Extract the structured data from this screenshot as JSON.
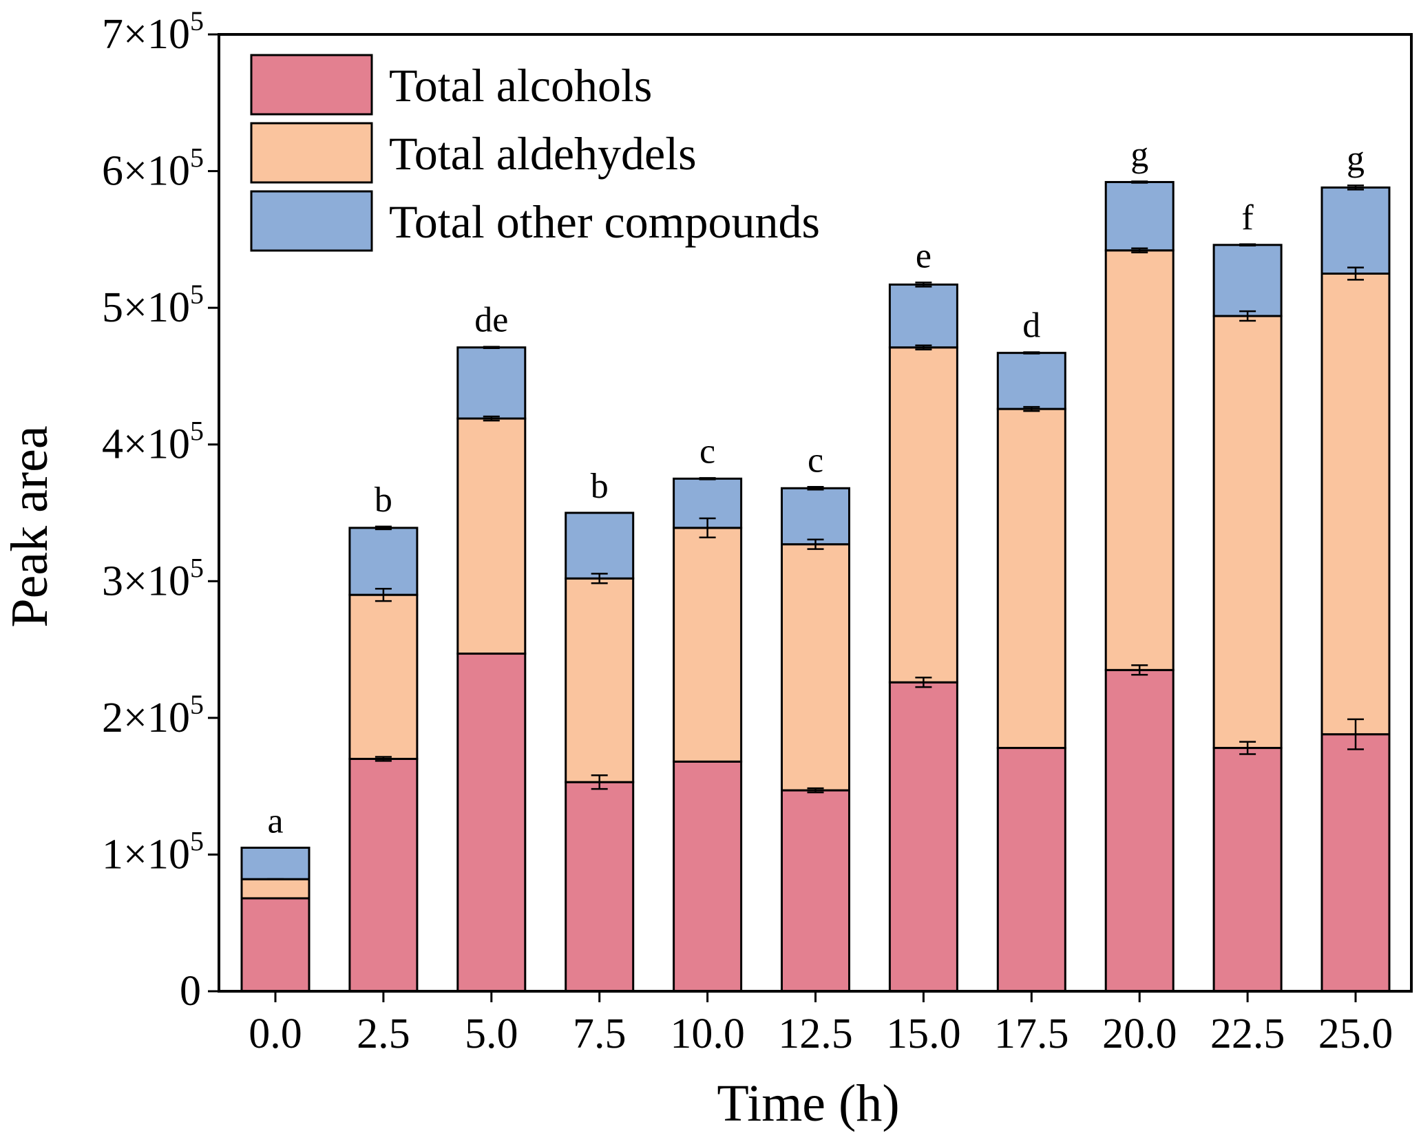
{
  "chart_data": {
    "type": "bar",
    "stacked": true,
    "title": "",
    "xlabel": "Time (h)",
    "ylabel": "Peak area",
    "ylim": [
      0,
      700000
    ],
    "yticks": [
      {
        "value": 0,
        "label": "0"
      },
      {
        "value": 100000,
        "label": "1×10",
        "exp": "5"
      },
      {
        "value": 200000,
        "label": "2×10",
        "exp": "5"
      },
      {
        "value": 300000,
        "label": "3×10",
        "exp": "5"
      },
      {
        "value": 400000,
        "label": "4×10",
        "exp": "5"
      },
      {
        "value": 500000,
        "label": "5×10",
        "exp": "5"
      },
      {
        "value": 600000,
        "label": "6×10",
        "exp": "5"
      },
      {
        "value": 700000,
        "label": "7×10",
        "exp": "5"
      }
    ],
    "categories": [
      "0.0",
      "2.5",
      "5.0",
      "7.5",
      "10.0",
      "12.5",
      "15.0",
      "17.5",
      "20.0",
      "22.5",
      "25.0"
    ],
    "series": [
      {
        "name": "Total alcohols",
        "color": "#E38090",
        "values": [
          68000,
          170000,
          247000,
          153000,
          168000,
          147000,
          226000,
          178000,
          235000,
          178000,
          188000
        ],
        "errors": [
          0,
          1500,
          0,
          5000,
          0,
          1500,
          3500,
          0,
          3500,
          4500,
          11000
        ]
      },
      {
        "name": "Total aldehydels",
        "color": "#FAC49E",
        "values": [
          14000,
          120000,
          172000,
          149000,
          171000,
          180000,
          245000,
          248000,
          307000,
          316000,
          337000
        ],
        "errors": [
          0,
          4500,
          1500,
          3500,
          7000,
          3500,
          1500,
          1500,
          1500,
          3500,
          4500
        ]
      },
      {
        "name": "Total other compounds",
        "color": "#8DADD8",
        "values": [
          23000,
          49000,
          52000,
          48000,
          36000,
          41000,
          46000,
          41000,
          50000,
          52000,
          63000
        ],
        "errors": [
          0,
          1000,
          500,
          0,
          500,
          1000,
          1500,
          500,
          500,
          500,
          1500
        ]
      }
    ],
    "significance": [
      "a",
      "b",
      "de",
      "b",
      "c",
      "c",
      "e",
      "d",
      "g",
      "f",
      "g"
    ],
    "legend": {
      "position": "top-left",
      "entries": [
        "Total alcohols",
        "Total aldehydels",
        "Total other compounds"
      ]
    },
    "grid": false
  }
}
